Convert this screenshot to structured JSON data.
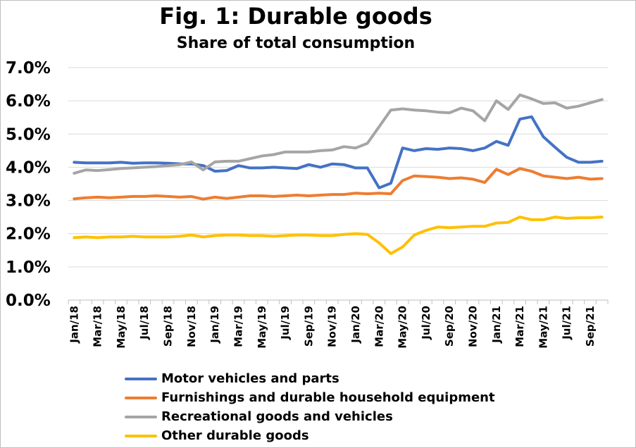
{
  "chart_data": {
    "type": "line",
    "title": "Fig. 1: Durable goods",
    "subtitle": "Share of total consumption",
    "xlabel": "",
    "ylabel": "",
    "ylim": [
      0,
      7
    ],
    "yticks": [
      "0.0%",
      "1.0%",
      "2.0%",
      "3.0%",
      "4.0%",
      "5.0%",
      "6.0%",
      "7.0%"
    ],
    "grid": true,
    "legend_position": "bottom",
    "x": [
      "Jan/18",
      "Feb/18",
      "Mar/18",
      "Apr/18",
      "May/18",
      "Jun/18",
      "Jul/18",
      "Aug/18",
      "Sep/18",
      "Oct/18",
      "Nov/18",
      "Dec/18",
      "Jan/19",
      "Feb/19",
      "Mar/19",
      "Apr/19",
      "May/19",
      "Jun/19",
      "Jul/19",
      "Aug/19",
      "Sep/19",
      "Oct/19",
      "Nov/19",
      "Dec/19",
      "Jan/20",
      "Feb/20",
      "Mar/20",
      "Apr/20",
      "May/20",
      "Jun/20",
      "Jul/20",
      "Aug/20",
      "Sep/20",
      "Oct/20",
      "Nov/20",
      "Dec/20",
      "Jan/21",
      "Feb/21",
      "Mar/21",
      "Apr/21",
      "May/21",
      "Jun/21",
      "Jul/21",
      "Aug/21",
      "Sep/21",
      "Oct/21"
    ],
    "xtick_labels_shown": [
      "Jan/18",
      "Mar/18",
      "May/18",
      "Jul/18",
      "Sep/18",
      "Nov/18",
      "Jan/19",
      "Mar/19",
      "May/19",
      "Jul/19",
      "Sep/19",
      "Nov/19",
      "Jan/20",
      "Mar/20",
      "May/20",
      "Jul/20",
      "Sep/20",
      "Nov/20",
      "Jan/21",
      "Mar/21",
      "May/21",
      "Jul/21",
      "Sep/21"
    ],
    "series": [
      {
        "name": "Motor vehicles and parts",
        "color": "#4472C4",
        "values": [
          4.15,
          4.13,
          4.13,
          4.13,
          4.15,
          4.12,
          4.13,
          4.13,
          4.12,
          4.1,
          4.1,
          4.05,
          3.88,
          3.9,
          4.05,
          3.98,
          3.98,
          4.0,
          3.98,
          3.96,
          4.08,
          4.0,
          4.1,
          4.08,
          3.98,
          3.98,
          3.38,
          3.52,
          4.58,
          4.5,
          4.56,
          4.54,
          4.58,
          4.56,
          4.5,
          4.58,
          4.78,
          4.66,
          5.45,
          5.52,
          4.92,
          4.6,
          4.3,
          4.15,
          4.15,
          4.18
        ]
      },
      {
        "name": "Furnishings and durable household equipment",
        "color": "#ED7D31",
        "values": [
          3.05,
          3.08,
          3.1,
          3.08,
          3.1,
          3.12,
          3.12,
          3.14,
          3.12,
          3.1,
          3.12,
          3.04,
          3.1,
          3.06,
          3.1,
          3.14,
          3.14,
          3.12,
          3.14,
          3.16,
          3.14,
          3.16,
          3.18,
          3.18,
          3.22,
          3.2,
          3.22,
          3.2,
          3.6,
          3.74,
          3.72,
          3.7,
          3.66,
          3.68,
          3.64,
          3.54,
          3.94,
          3.78,
          3.96,
          3.88,
          3.74,
          3.7,
          3.66,
          3.7,
          3.64,
          3.66
        ]
      },
      {
        "name": "Recreational goods and vehicles",
        "color": "#A5A5A5",
        "values": [
          3.82,
          3.92,
          3.9,
          3.93,
          3.96,
          3.98,
          4.0,
          4.02,
          4.05,
          4.08,
          4.16,
          3.92,
          4.16,
          4.18,
          4.18,
          4.26,
          4.34,
          4.38,
          4.46,
          4.46,
          4.46,
          4.5,
          4.52,
          4.62,
          4.58,
          4.72,
          5.22,
          5.72,
          5.76,
          5.72,
          5.7,
          5.66,
          5.64,
          5.78,
          5.7,
          5.4,
          6.0,
          5.74,
          6.18,
          6.06,
          5.92,
          5.94,
          5.78,
          5.84,
          5.94,
          6.04
        ]
      },
      {
        "name": "Other durable goods",
        "color": "#FFC000",
        "values": [
          1.88,
          1.9,
          1.88,
          1.9,
          1.9,
          1.92,
          1.9,
          1.9,
          1.9,
          1.92,
          1.96,
          1.9,
          1.94,
          1.96,
          1.96,
          1.94,
          1.94,
          1.92,
          1.94,
          1.96,
          1.96,
          1.94,
          1.94,
          1.98,
          2.0,
          1.98,
          1.72,
          1.4,
          1.6,
          1.96,
          2.1,
          2.2,
          2.18,
          2.2,
          2.22,
          2.22,
          2.32,
          2.34,
          2.5,
          2.42,
          2.42,
          2.5,
          2.46,
          2.48,
          2.48,
          2.5
        ]
      }
    ]
  }
}
